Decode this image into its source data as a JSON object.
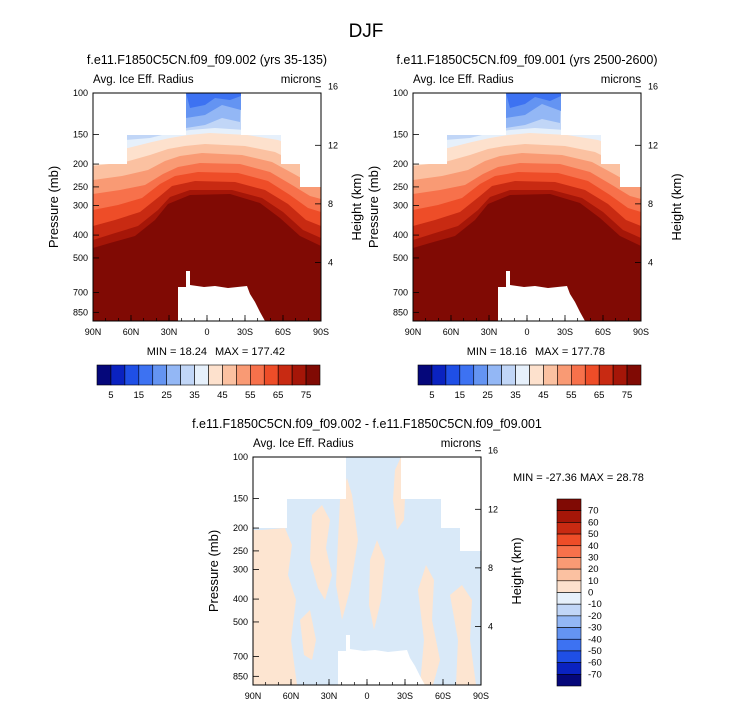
{
  "page_title": "DJF",
  "colors": {
    "page_background": "#ffffff",
    "missing_fill": "#ffffff",
    "diff_light_blue": "#d9e9f8",
    "diff_light_orange": "#fde5d1"
  },
  "chart_data": [
    {
      "type": "heatmap",
      "title": "f.e11.F1850C5CN.f09_f09.002 (yrs 35-135)",
      "subtitle_left": "Avg. Ice Eff. Radius",
      "subtitle_right": "microns",
      "ylabel": "Pressure (mb)",
      "ylabel_right": "Height (km)",
      "x_ticks": [
        "90N",
        "60N",
        "30N",
        "0",
        "30S",
        "60S",
        "90S"
      ],
      "x_tick_values": [
        90,
        60,
        30,
        0,
        -30,
        -60,
        -90
      ],
      "y_ticks": [
        "100",
        "150",
        "200",
        "250",
        "300",
        "400",
        "500",
        "700",
        "850"
      ],
      "y_tick_values": [
        100,
        150,
        200,
        250,
        300,
        400,
        500,
        700,
        850
      ],
      "y_right_ticks": [
        "16",
        "12",
        "8",
        "4"
      ],
      "y_right_tick_values": [
        16,
        12,
        8,
        4
      ],
      "ylim": [
        100,
        925
      ],
      "xlim": [
        90,
        -90
      ],
      "min_label": "MIN = 18.24",
      "max_label": "MAX = 177.42",
      "min": 18.24,
      "max": 177.42,
      "colorbar_levels": [
        5,
        10,
        15,
        20,
        25,
        30,
        35,
        40,
        45,
        50,
        55,
        60,
        65,
        70,
        75
      ],
      "colorbar_labels": [
        "5",
        "15",
        "25",
        "35",
        "45",
        "55",
        "65",
        "75"
      ]
    },
    {
      "type": "heatmap",
      "title": "f.e11.F1850C5CN.f09_f09.001 (yrs 2500-2600)",
      "subtitle_left": "Avg. Ice Eff. Radius",
      "subtitle_right": "microns",
      "ylabel": "Pressure (mb)",
      "ylabel_right": "Height (km)",
      "x_ticks": [
        "90N",
        "60N",
        "30N",
        "0",
        "30S",
        "60S",
        "90S"
      ],
      "x_tick_values": [
        90,
        60,
        30,
        0,
        -30,
        -60,
        -90
      ],
      "y_ticks": [
        "100",
        "150",
        "200",
        "250",
        "300",
        "400",
        "500",
        "700",
        "850"
      ],
      "y_tick_values": [
        100,
        150,
        200,
        250,
        300,
        400,
        500,
        700,
        850
      ],
      "y_right_ticks": [
        "16",
        "12",
        "8",
        "4"
      ],
      "y_right_tick_values": [
        16,
        12,
        8,
        4
      ],
      "ylim": [
        100,
        925
      ],
      "xlim": [
        90,
        -90
      ],
      "min_label": "MIN = 18.16",
      "max_label": "MAX = 177.78",
      "min": 18.16,
      "max": 177.78,
      "colorbar_levels": [
        5,
        10,
        15,
        20,
        25,
        30,
        35,
        40,
        45,
        50,
        55,
        60,
        65,
        70,
        75
      ],
      "colorbar_labels": [
        "5",
        "15",
        "25",
        "35",
        "45",
        "55",
        "65",
        "75"
      ]
    },
    {
      "type": "heatmap",
      "title": "f.e11.F1850C5CN.f09_f09.002 - f.e11.F1850C5CN.f09_f09.001",
      "subtitle_left": "Avg. Ice Eff. Radius",
      "subtitle_right": "microns",
      "ylabel": "Pressure (mb)",
      "ylabel_right": "Height (km)",
      "x_ticks": [
        "90N",
        "60N",
        "30N",
        "0",
        "30S",
        "60S",
        "90S"
      ],
      "x_tick_values": [
        90,
        60,
        30,
        0,
        -30,
        -60,
        -90
      ],
      "y_ticks": [
        "100",
        "150",
        "200",
        "250",
        "300",
        "400",
        "500",
        "700",
        "850"
      ],
      "y_tick_values": [
        100,
        150,
        200,
        250,
        300,
        400,
        500,
        700,
        850
      ],
      "y_right_ticks": [
        "16",
        "12",
        "8",
        "4"
      ],
      "y_right_tick_values": [
        16,
        12,
        8,
        4
      ],
      "ylim": [
        100,
        925
      ],
      "xlim": [
        90,
        -90
      ],
      "min_label": "MIN = -27.36",
      "max_label": "MAX =  28.78",
      "min": -27.36,
      "max": 28.78,
      "colorbar_labels": [
        "70",
        "60",
        "50",
        "40",
        "30",
        "20",
        "10",
        "0",
        "-10",
        "-20",
        "-30",
        "-40",
        "-50",
        "-60",
        "-70"
      ]
    }
  ],
  "colorbars": {
    "field_colors": [
      "#05077a",
      "#0a22c0",
      "#1f4fe6",
      "#3d72f2",
      "#6494f2",
      "#93b7f5",
      "#c1d6f7",
      "#e6f0fb",
      "#fde1cd",
      "#fbc1a1",
      "#f99a74",
      "#f7714b",
      "#ee4d28",
      "#c82a12",
      "#a51608",
      "#800a04"
    ],
    "diff_colors": [
      "#800a04",
      "#a51608",
      "#c82a12",
      "#ee4d28",
      "#f7714b",
      "#f99a74",
      "#fbc1a1",
      "#fde1cd",
      "#e6f0fb",
      "#c1d6f7",
      "#93b7f5",
      "#6494f2",
      "#3d72f2",
      "#1f4fe6",
      "#0a22c0",
      "#05077a"
    ]
  }
}
